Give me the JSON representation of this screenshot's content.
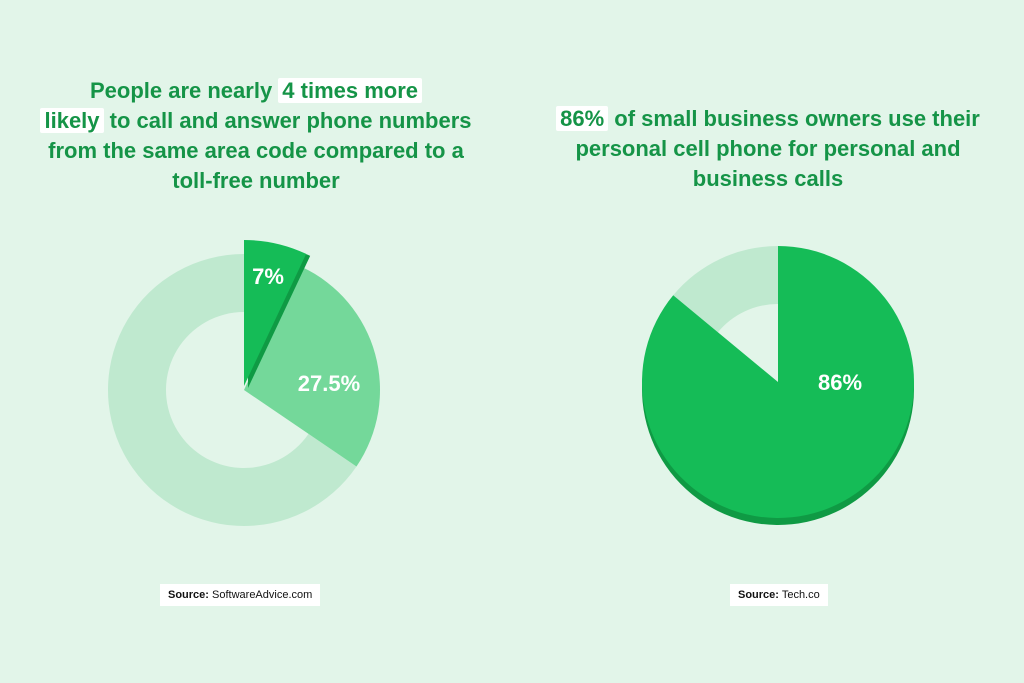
{
  "colors": {
    "background": "#e2f5e9",
    "text_green": "#159447",
    "dark_green": "#15bc57",
    "mid_green": "#74d89a",
    "light_green": "#bfe9cf",
    "shadow_green": "#0f9a44"
  },
  "left": {
    "headline": {
      "pre": "People are nearly ",
      "highlight_1": "4 times more",
      "highlight_2": "likely",
      "post": " to call and answer phone numbers from the same area code compared to a toll-free number"
    },
    "source_prefix": "Source:",
    "source_name": " SoftwareAdvice.com"
  },
  "right": {
    "headline": {
      "highlight": "86%",
      "post": " of small business owners use their personal cell phone for personal and business calls"
    },
    "source_prefix": "Source:",
    "source_name": " Tech.co"
  },
  "chart_data": [
    {
      "type": "pie",
      "title": "",
      "slices": [
        {
          "label": "7%",
          "value": 7,
          "color": "#15bc57"
        },
        {
          "label": "27.5%",
          "value": 27.5,
          "color": "#74d89a"
        },
        {
          "label": "",
          "value": 65.5,
          "color": "#bfe9cf"
        }
      ],
      "donut": true
    },
    {
      "type": "pie",
      "title": "",
      "slices": [
        {
          "label": "86%",
          "value": 86,
          "color": "#15bc57"
        },
        {
          "label": "",
          "value": 14,
          "color": "#bfe9cf"
        }
      ],
      "donut": true
    }
  ]
}
